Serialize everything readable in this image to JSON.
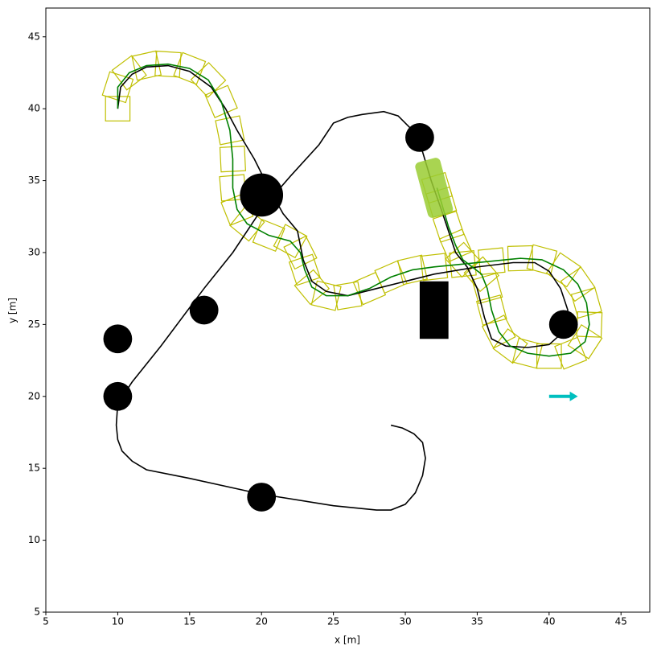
{
  "chart_data": {
    "type": "line",
    "xlabel": "x [m]",
    "ylabel": "y [m]",
    "xlim": [
      5,
      47
    ],
    "ylim": [
      5,
      47
    ],
    "xticks": [
      5,
      10,
      15,
      20,
      25,
      30,
      35,
      40,
      45
    ],
    "yticks": [
      5,
      10,
      15,
      20,
      25,
      30,
      35,
      40,
      45
    ],
    "series": [
      {
        "color": "#000000",
        "x": [
          10,
          10.2,
          11,
          12,
          13.5,
          15,
          16.5,
          17.5,
          18.3,
          19.5,
          20.5,
          21.5,
          22.5,
          22.9,
          23.5,
          24.5,
          26,
          28,
          30,
          32,
          35,
          37.5,
          39,
          40,
          40.8,
          41.3,
          41,
          40,
          38.5,
          37,
          36,
          35.5,
          35,
          34.3,
          33.5,
          33,
          32.5,
          31.8,
          31.2,
          30.5,
          29.5,
          28.5,
          27,
          26,
          25,
          24,
          22,
          20,
          18,
          16,
          13,
          11,
          10,
          9.9,
          10,
          10.3,
          11,
          12,
          15,
          20,
          25,
          28,
          29,
          30,
          30.7,
          31.2,
          31.4,
          31.2,
          30.6,
          29.8,
          29
        ],
        "y": [
          40,
          41.5,
          42.4,
          42.9,
          43,
          42.6,
          41.5,
          40,
          38.5,
          36.5,
          34.5,
          32.7,
          31.5,
          29.5,
          28,
          27.3,
          27,
          27.5,
          28,
          28.5,
          29,
          29.3,
          29.3,
          28.7,
          27.5,
          26,
          24.5,
          23.6,
          23.4,
          23.5,
          24,
          25.5,
          27.5,
          29,
          30,
          31.5,
          33,
          35,
          37,
          38.5,
          39.5,
          39.8,
          39.6,
          39.4,
          39,
          37.5,
          35.3,
          33,
          30,
          27.5,
          23.5,
          21,
          19.5,
          18,
          17,
          16.2,
          15.5,
          14.9,
          14.3,
          13.2,
          12.4,
          12.1,
          12.1,
          12.5,
          13.3,
          14.5,
          15.7,
          16.8,
          17.4,
          17.8,
          18
        ]
      },
      {
        "color": "#008000",
        "footprint_color": "#bfbf00",
        "x": [
          10,
          10,
          10.8,
          12,
          13.5,
          15,
          16.3,
          17.2,
          17.8,
          18,
          18,
          18.3,
          19,
          20.5,
          22,
          22.7,
          23,
          23.5,
          24.5,
          26,
          27.5,
          29,
          30.5,
          32,
          34,
          36,
          38,
          39.5,
          41,
          42,
          42.6,
          42.8,
          42.5,
          41.5,
          40,
          38.5,
          37.3,
          36.5,
          36,
          35.7,
          35.3,
          34,
          33.5,
          33,
          32.5,
          32.2
        ],
        "y": [
          40,
          41.5,
          42.5,
          43,
          43.1,
          42.8,
          42,
          40.5,
          38.5,
          36.5,
          34.5,
          33,
          32,
          31.2,
          30.8,
          30,
          28.8,
          27.6,
          27,
          27,
          27.5,
          28.3,
          28.8,
          29,
          29.2,
          29.4,
          29.6,
          29.5,
          28.8,
          27.8,
          26.5,
          25,
          23.8,
          23,
          22.8,
          23,
          23.5,
          24.5,
          26,
          27.5,
          28.5,
          29.5,
          30.5,
          31.8,
          33.5,
          34.5
        ]
      }
    ],
    "obstacles": [
      {
        "x": 20,
        "y": 34,
        "r": 1.5
      },
      {
        "x": 31,
        "y": 38,
        "r": 1
      },
      {
        "x": 16,
        "y": 26,
        "r": 1
      },
      {
        "x": 10,
        "y": 24,
        "r": 1
      },
      {
        "x": 10,
        "y": 20,
        "r": 1
      },
      {
        "x": 20,
        "y": 13,
        "r": 1
      },
      {
        "x": 41,
        "y": 25,
        "r": 1
      }
    ],
    "block": {
      "x": 31,
      "y": 24,
      "width": 2,
      "height": 4
    },
    "vehicle": {
      "x": 32,
      "y": 34.5,
      "heading": 105,
      "color": "#9acd32"
    },
    "arrow": {
      "x": 40,
      "y": 20,
      "dx": 2,
      "dy": 0,
      "color": "#00bfbf"
    }
  }
}
